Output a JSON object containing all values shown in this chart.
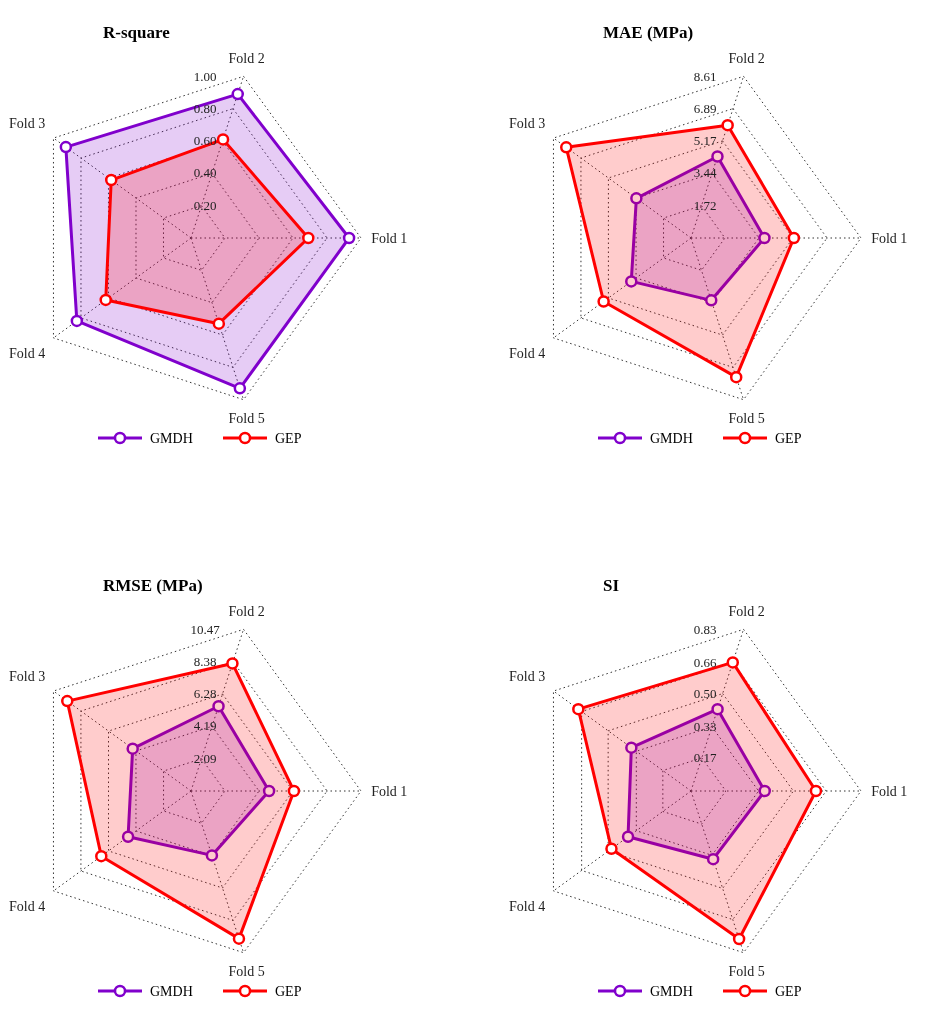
{
  "chart_data": [
    {
      "type": "radar",
      "title": "R-square",
      "categories": [
        "Fold 2",
        "Fold 1",
        "Fold 5",
        "Fold 4",
        "Fold 3"
      ],
      "ylim": [
        0,
        1
      ],
      "yticks": [
        {
          "value": 0.2,
          "label": "0.20"
        },
        {
          "value": 0.4,
          "label": "0.40"
        },
        {
          "value": 0.6,
          "label": "0.60"
        },
        {
          "value": 0.8,
          "label": "0.80"
        },
        {
          "value": 1,
          "label": "1.00"
        }
      ],
      "grid": true,
      "legend": "bottom",
      "marker": "circle",
      "series": [
        {
          "name": "GMDH",
          "color": "#8000cc",
          "values": [
            0.89,
            0.93,
            0.93,
            0.83,
            0.91
          ]
        },
        {
          "name": "GEP",
          "color": "#ff0000",
          "values": [
            0.61,
            0.69,
            0.53,
            0.62,
            0.58
          ]
        }
      ]
    },
    {
      "type": "radar",
      "title": "MAE (MPa)",
      "categories": [
        "Fold 2",
        "Fold 1",
        "Fold 5",
        "Fold 4",
        "Fold 3"
      ],
      "ylim": [
        0,
        8.61
      ],
      "yticks": [
        1.72,
        3.44,
        5.17,
        6.89,
        8.61
      ],
      "grid": true,
      "legend": "bottom",
      "marker": "circle",
      "series": [
        {
          "name": "GMDH",
          "color": "#8000cc",
          "values": [
            4.34,
            3.72,
            3.32,
            3.74,
            3.42
          ]
        },
        {
          "name": "GEP",
          "color": "#ff0000",
          "values": [
            6.01,
            5.21,
            7.41,
            5.47,
            7.81
          ]
        }
      ]
    },
    {
      "type": "radar",
      "title": "RMSE (MPa)",
      "categories": [
        "Fold 2",
        "Fold 1",
        "Fold 5",
        "Fold 4",
        "Fold 3"
      ],
      "ylim": [
        0,
        10.47
      ],
      "yticks": [
        2.09,
        4.19,
        6.28,
        8.38,
        10.47
      ],
      "grid": true,
      "legend": "bottom",
      "marker": "circle",
      "series": [
        {
          "name": "GMDH",
          "color": "#8000cc",
          "values": [
            5.49,
            4.81,
            4.17,
            4.79,
            4.44
          ]
        },
        {
          "name": "GEP",
          "color": "#ff0000",
          "values": [
            8.26,
            6.34,
            9.56,
            6.83,
            9.42
          ]
        }
      ]
    },
    {
      "type": "radar",
      "title": "SI",
      "categories": [
        "Fold 2",
        "Fold 1",
        "Fold 5",
        "Fold 4",
        "Fold 3"
      ],
      "ylim": [
        0,
        0.83
      ],
      "yticks": [
        0.17,
        0.33,
        {
          "value": 0.5,
          "label": "0.50"
        },
        0.66,
        0.83
      ],
      "grid": true,
      "legend": "bottom",
      "marker": "circle",
      "series": [
        {
          "name": "GMDH",
          "color": "#8000cc",
          "values": [
            0.42,
            0.36,
            0.35,
            0.38,
            0.36
          ]
        },
        {
          "name": "GEP",
          "color": "#ff0000",
          "values": [
            0.66,
            0.61,
            0.76,
            0.48,
            0.68
          ]
        }
      ]
    }
  ]
}
